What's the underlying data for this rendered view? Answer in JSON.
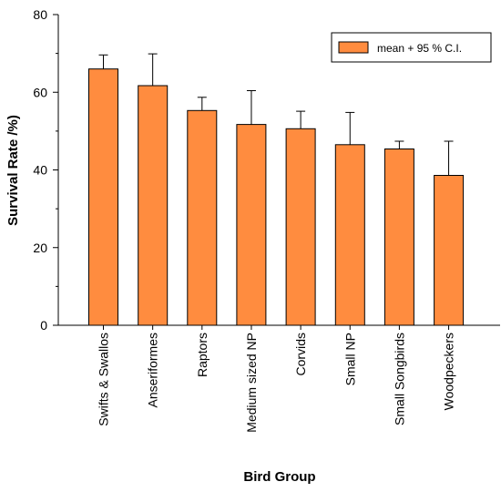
{
  "chart_data": {
    "type": "bar",
    "xlabel": "Bird Group",
    "ylabel": "Survival Rate /%)",
    "ylim": [
      0,
      80
    ],
    "yticks": [
      0,
      20,
      40,
      60,
      80
    ],
    "grid": false,
    "legend": {
      "placement": "top-right",
      "label": "mean  + 95 % C.I."
    },
    "categories": [
      "Swifts & Swallos",
      "Anseriformes",
      "Raptors",
      "Medium sized NP",
      "Corvids",
      "Small NP",
      "Small Songbirds",
      "Woodpeckers"
    ],
    "series": [
      {
        "name": "mean  + 95 % C.I.",
        "values": [
          66,
          61.7,
          55.3,
          51.7,
          50.6,
          46.5,
          45.4,
          38.6
        ],
        "ci_upper": [
          69.6,
          69.9,
          58.7,
          60.4,
          55.1,
          54.8,
          47.4,
          47.4
        ],
        "color": "#FF8C3F",
        "edge_color": "#000000"
      }
    ]
  }
}
